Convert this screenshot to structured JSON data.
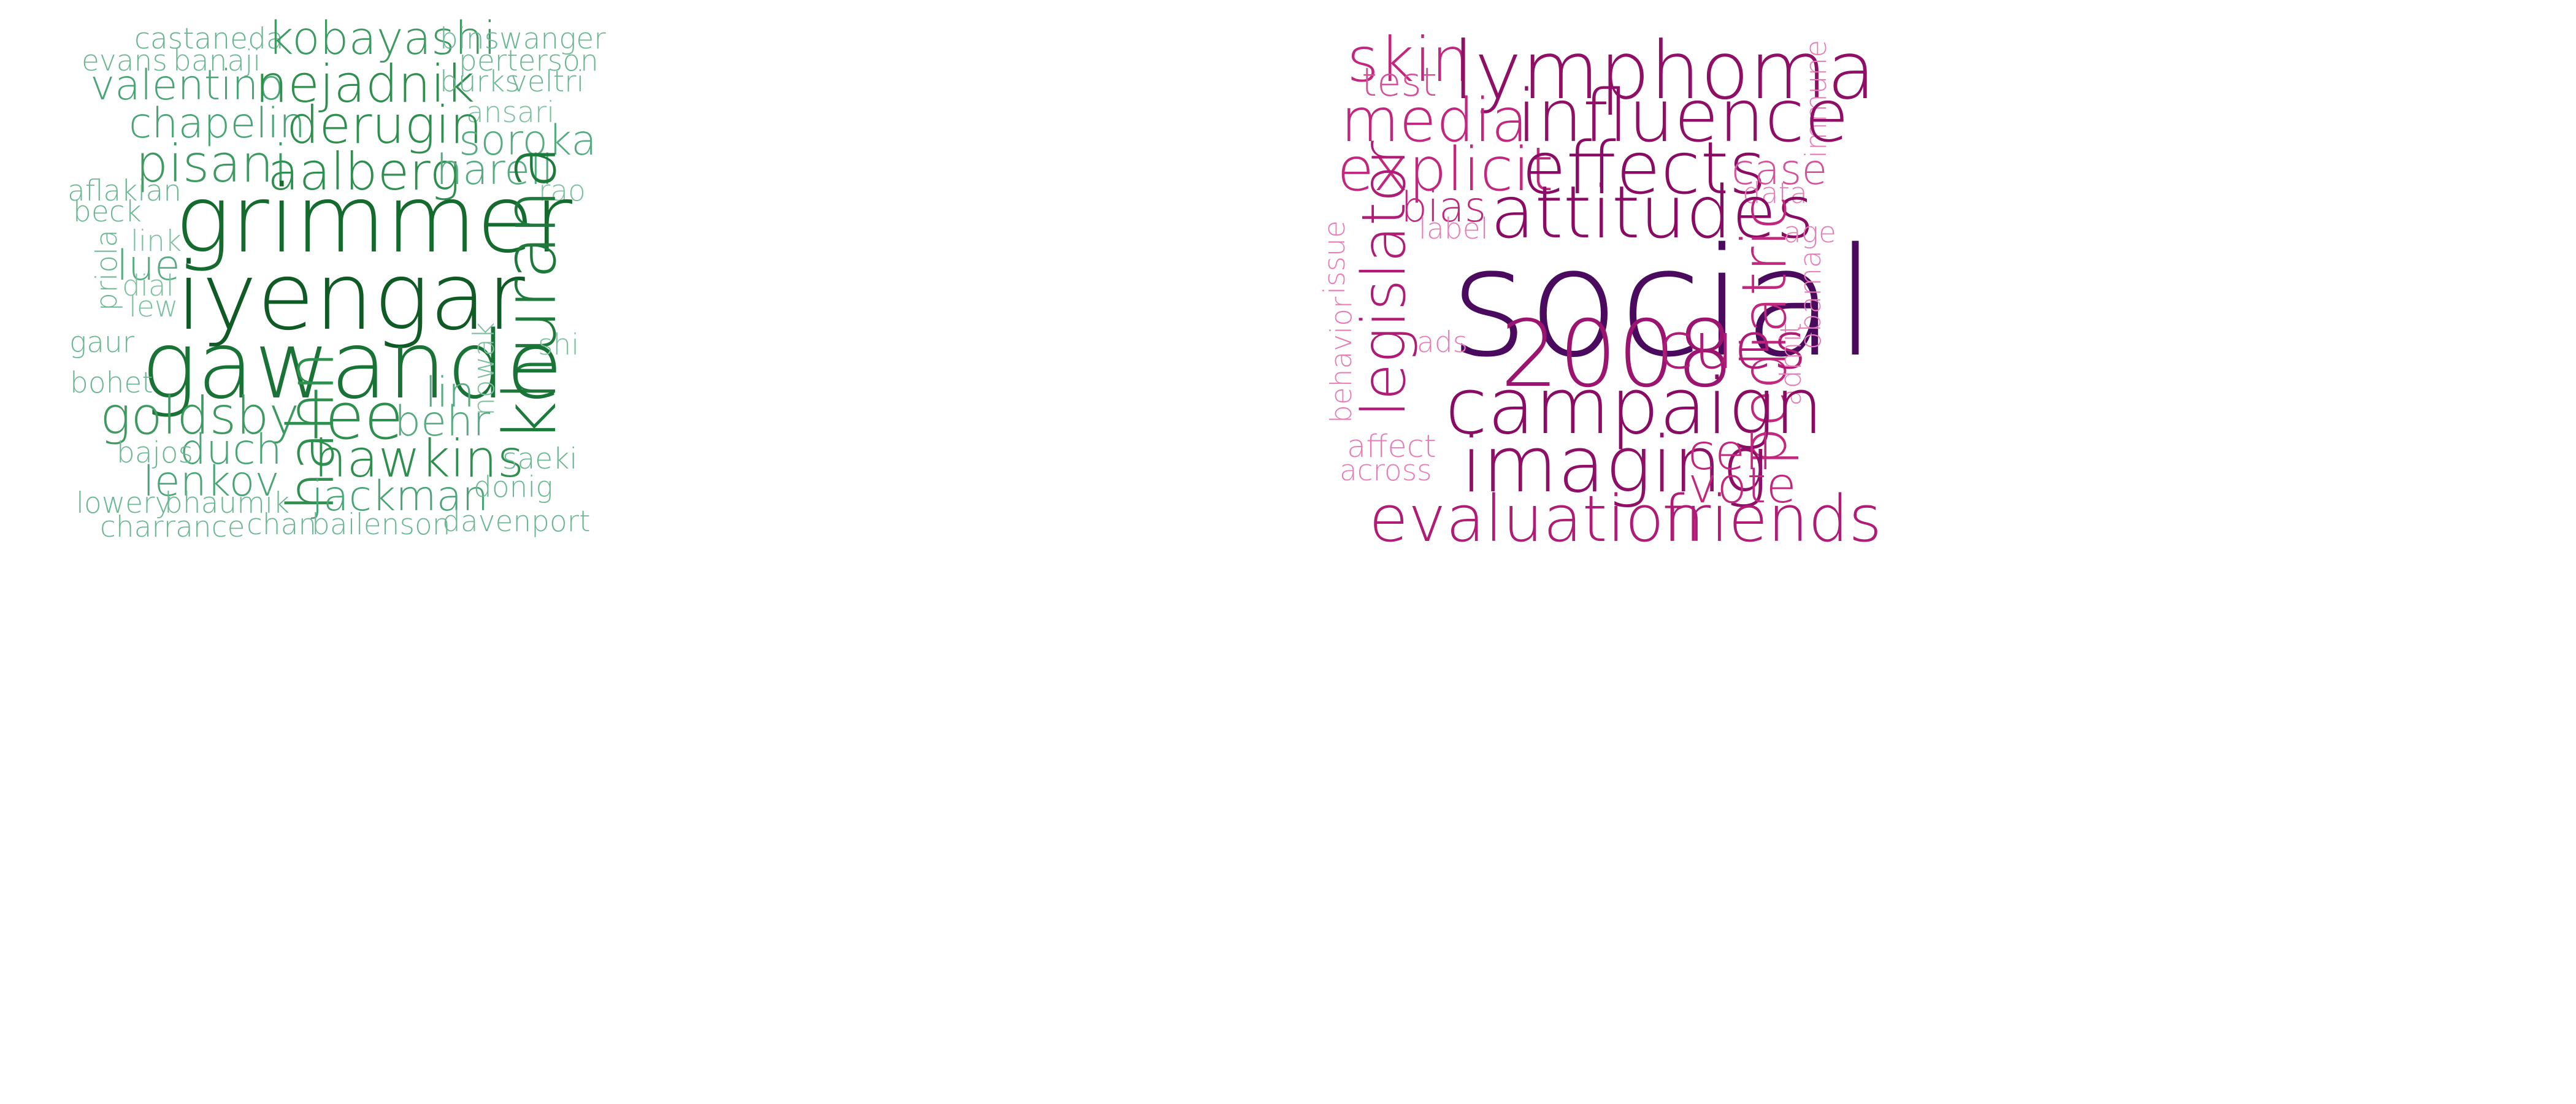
{
  "clouds": [
    {
      "id": "left",
      "words": [
        {
          "text": "castaneda",
          "color": "#66b38f"
        },
        {
          "text": "kobayashi",
          "color": "#3f9a62"
        },
        {
          "text": "binswanger",
          "color": "#6cb793"
        },
        {
          "text": "evans",
          "color": "#6cb793"
        },
        {
          "text": "banaji",
          "color": "#6cb793"
        },
        {
          "text": "perterson",
          "color": "#6cb793"
        },
        {
          "text": "valentino",
          "color": "#4aa576"
        },
        {
          "text": "nejadnik",
          "color": "#2f8f4e"
        },
        {
          "text": "burks",
          "color": "#6cb793"
        },
        {
          "text": "veltri",
          "color": "#6cb793"
        },
        {
          "text": "ansari",
          "color": "#7cc0a0"
        },
        {
          "text": "chapelin",
          "color": "#4aa576"
        },
        {
          "text": "derugin",
          "color": "#2f8f4e"
        },
        {
          "text": "soroka",
          "color": "#56ab80"
        },
        {
          "text": "pisani",
          "color": "#3f9a62"
        },
        {
          "text": "aalberg",
          "color": "#2f8f4e"
        },
        {
          "text": "harell",
          "color": "#56ab80"
        },
        {
          "text": "aflakian",
          "color": "#6cb793"
        },
        {
          "text": "rao",
          "color": "#7cc0a0"
        },
        {
          "text": "beck",
          "color": "#6cb793"
        },
        {
          "text": "grimmer",
          "color": "#156b2e"
        },
        {
          "text": "link",
          "color": "#7cc0a0"
        },
        {
          "text": "priola",
          "color": "#6cb793"
        },
        {
          "text": "lue",
          "color": "#56ab80"
        },
        {
          "text": "dial",
          "color": "#7cc0a0"
        },
        {
          "text": "lew",
          "color": "#7cc0a0"
        },
        {
          "text": "iyengar",
          "color": "#0f5a25"
        },
        {
          "text": "khurana",
          "color": "#1e7a3b"
        },
        {
          "text": "gaur",
          "color": "#6cb793"
        },
        {
          "text": "gawande",
          "color": "#1a7336"
        },
        {
          "text": "shi",
          "color": "#7cc0a0"
        },
        {
          "text": "bohet",
          "color": "#6cb793"
        },
        {
          "text": "nowak",
          "color": "#7cc0a0"
        },
        {
          "text": "lin",
          "color": "#56ab80"
        },
        {
          "text": "goldsby",
          "color": "#3f9a62"
        },
        {
          "text": "lee",
          "color": "#2f8f4e"
        },
        {
          "text": "behr",
          "color": "#56ab80"
        },
        {
          "text": "hahn",
          "color": "#2f8f4e"
        },
        {
          "text": "duch",
          "color": "#4aa576"
        },
        {
          "text": "bajos",
          "color": "#6cb793"
        },
        {
          "text": "hawkins",
          "color": "#2f8f4e"
        },
        {
          "text": "saeki",
          "color": "#6cb793"
        },
        {
          "text": "lenkov",
          "color": "#4aa576"
        },
        {
          "text": "jackman",
          "color": "#4aa576"
        },
        {
          "text": "donig",
          "color": "#6cb793"
        },
        {
          "text": "lowery",
          "color": "#6cb793"
        },
        {
          "text": "bhaumik",
          "color": "#6cb793"
        },
        {
          "text": "charrance",
          "color": "#6cb793"
        },
        {
          "text": "chan",
          "color": "#6cb793"
        },
        {
          "text": "bailenson",
          "color": "#6cb793"
        },
        {
          "text": "davenport",
          "color": "#6cb793"
        }
      ]
    },
    {
      "id": "right",
      "words": [
        {
          "text": "skin",
          "color": "#c2277e"
        },
        {
          "text": "lymphoma",
          "color": "#8f0e66"
        },
        {
          "text": "immune",
          "color": "#e77db5"
        },
        {
          "text": "test",
          "color": "#d4519a"
        },
        {
          "text": "media",
          "color": "#c2277e"
        },
        {
          "text": "influence",
          "color": "#8f0e66"
        },
        {
          "text": "explicit",
          "color": "#c2277e"
        },
        {
          "text": "effects",
          "color": "#8a0b63"
        },
        {
          "text": "case",
          "color": "#d4519a"
        },
        {
          "text": "data",
          "color": "#e77db5"
        },
        {
          "text": "bias",
          "color": "#c2277e"
        },
        {
          "text": "attitudes",
          "color": "#8a0b63"
        },
        {
          "text": "label",
          "color": "#e77db5"
        },
        {
          "text": "legislator",
          "color": "#b01c75"
        },
        {
          "text": "age",
          "color": "#e77db5"
        },
        {
          "text": "issue",
          "color": "#e77db5"
        },
        {
          "text": "social",
          "color": "#4a0a5e"
        },
        {
          "text": "obama",
          "color": "#e77db5"
        },
        {
          "text": "pediatric",
          "color": "#c2277e"
        },
        {
          "text": "behavior",
          "color": "#e77db5"
        },
        {
          "text": "ads",
          "color": "#e77db5"
        },
        {
          "text": "2008",
          "color": "#9b1470"
        },
        {
          "text": "cues",
          "color": "#b01c75"
        },
        {
          "text": "admit",
          "color": "#e77db5"
        },
        {
          "text": "campaign",
          "color": "#8a0b63"
        },
        {
          "text": "affect",
          "color": "#e77db5"
        },
        {
          "text": "imaging",
          "color": "#8f0e66"
        },
        {
          "text": "cell",
          "color": "#c2277e"
        },
        {
          "text": "across",
          "color": "#e77db5"
        },
        {
          "text": "vote",
          "color": "#c2277e"
        },
        {
          "text": "evaluation",
          "color": "#b01c75"
        },
        {
          "text": "friends",
          "color": "#b01c75"
        }
      ]
    }
  ]
}
